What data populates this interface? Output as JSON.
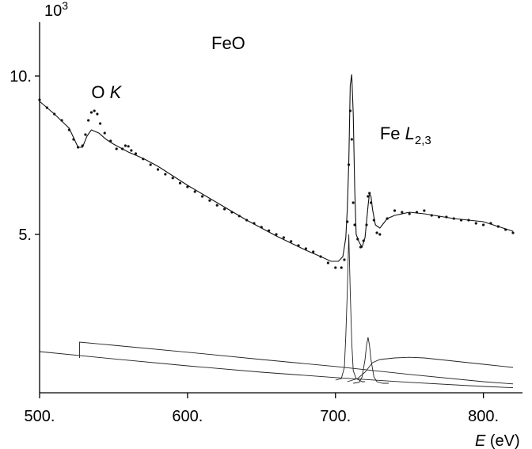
{
  "chart_data": {
    "type": "scatter",
    "title": "FeO",
    "xlabel": "E (eV)",
    "ylabel": "",
    "y_multiplier_label": "10",
    "y_multiplier_exp": "3",
    "xlim": [
      500,
      820
    ],
    "ylim": [
      0,
      11.7
    ],
    "x_ticks": [
      500,
      600,
      700,
      800
    ],
    "x_tick_labels": [
      "500.",
      "600.",
      "700.",
      "800."
    ],
    "y_ticks": [
      5,
      10
    ],
    "y_tick_labels": [
      "5.",
      "10."
    ],
    "grid": false,
    "legend": "none",
    "annotations": [
      {
        "text": "O ",
        "italic_part": "K",
        "x": 535,
        "y": 9.3
      },
      {
        "text": "Fe ",
        "italic_part": "L",
        "subscript": "2,3",
        "x": 730,
        "y": 8.0
      }
    ],
    "series": [
      {
        "kind": "points",
        "x": [
          500,
          505,
          510,
          515,
          520,
          523,
          526,
          529,
          531,
          533,
          535,
          537,
          539,
          541,
          544,
          548,
          552,
          556,
          558,
          560,
          562,
          565,
          570,
          575,
          580,
          585,
          590,
          595,
          600,
          605,
          610,
          615,
          620,
          625,
          630,
          635,
          640,
          645,
          650,
          655,
          660,
          665,
          670,
          675,
          680,
          685,
          690,
          695,
          700,
          704,
          706,
          708,
          709,
          710,
          711,
          712,
          713,
          715,
          717,
          719,
          721,
          722,
          723,
          724,
          726,
          728,
          730,
          735,
          740,
          745,
          750,
          755,
          760,
          765,
          770,
          775,
          780,
          785,
          790,
          795,
          800,
          805,
          810,
          815,
          820
        ],
        "y": [
          9.25,
          9.0,
          8.8,
          8.6,
          8.3,
          8.0,
          7.75,
          7.8,
          8.15,
          8.6,
          8.85,
          8.9,
          8.8,
          8.5,
          8.2,
          7.95,
          7.7,
          7.7,
          7.8,
          7.78,
          7.65,
          7.55,
          7.38,
          7.2,
          7.05,
          6.9,
          6.78,
          6.62,
          6.5,
          6.35,
          6.2,
          6.07,
          5.92,
          5.8,
          5.7,
          5.58,
          5.45,
          5.35,
          5.23,
          5.12,
          5.0,
          4.9,
          4.78,
          4.65,
          4.55,
          4.45,
          4.3,
          4.1,
          3.95,
          3.95,
          4.2,
          5.4,
          7.2,
          8.9,
          8.0,
          6.0,
          5.3,
          4.85,
          4.6,
          4.8,
          5.3,
          6.2,
          6.3,
          6.0,
          5.45,
          5.05,
          5.0,
          5.5,
          5.75,
          5.7,
          5.65,
          5.7,
          5.75,
          5.6,
          5.55,
          5.55,
          5.5,
          5.45,
          5.45,
          5.35,
          5.3,
          5.35,
          5.25,
          5.15,
          5.05
        ]
      },
      {
        "kind": "fit",
        "x": [
          500,
          510,
          520,
          526,
          529,
          532,
          535,
          540,
          545,
          550,
          560,
          570,
          580,
          590,
          600,
          620,
          640,
          660,
          680,
          690,
          697,
          702,
          705,
          707,
          708,
          709,
          710,
          711,
          712,
          713,
          714,
          716,
          718,
          720,
          722,
          723,
          724,
          725,
          727,
          730,
          735,
          740,
          750,
          760,
          780,
          800,
          820
        ],
        "y": [
          9.2,
          8.8,
          8.35,
          7.75,
          7.75,
          8.1,
          8.3,
          8.2,
          8.0,
          7.85,
          7.6,
          7.4,
          7.15,
          6.85,
          6.55,
          6.0,
          5.45,
          4.95,
          4.5,
          4.3,
          4.15,
          4.15,
          4.3,
          4.9,
          5.8,
          7.3,
          9.7,
          10.05,
          8.8,
          6.5,
          5.0,
          4.75,
          4.6,
          4.9,
          5.9,
          6.3,
          6.2,
          5.8,
          5.3,
          5.2,
          5.5,
          5.6,
          5.7,
          5.65,
          5.5,
          5.4,
          5.1
        ]
      },
      {
        "kind": "component",
        "name": "background",
        "x": [
          500,
          550,
          600,
          650,
          700,
          750,
          800,
          820
        ],
        "y": [
          1.3,
          1.07,
          0.85,
          0.65,
          0.48,
          0.33,
          0.2,
          0.16
        ]
      },
      {
        "kind": "component",
        "name": "O K edge",
        "x": [
          527,
          527,
          550,
          600,
          650,
          700,
          750,
          800,
          820
        ],
        "y": [
          1.1,
          1.6,
          1.5,
          1.28,
          1.05,
          0.83,
          0.58,
          0.35,
          0.28
        ]
      },
      {
        "kind": "component",
        "name": "Fe L3 peak",
        "x": [
          700,
          704,
          706,
          707,
          708,
          709,
          710,
          711,
          712,
          714,
          718,
          720
        ],
        "y": [
          0.4,
          0.45,
          0.8,
          1.8,
          3.2,
          5.0,
          3.2,
          1.6,
          0.7,
          0.45,
          0.35,
          0.35
        ]
      },
      {
        "kind": "component",
        "name": "Fe L2 peak",
        "x": [
          712,
          716,
          718,
          720,
          721,
          722,
          723,
          724,
          726,
          728,
          732,
          736
        ],
        "y": [
          0.3,
          0.33,
          0.5,
          1.05,
          1.5,
          1.75,
          1.5,
          1.05,
          0.5,
          0.35,
          0.3,
          0.3
        ]
      },
      {
        "kind": "component",
        "name": "continuum",
        "x": [
          708,
          715,
          720,
          725,
          730,
          740,
          750,
          760,
          780,
          800,
          820
        ],
        "y": [
          0.35,
          0.45,
          0.65,
          0.95,
          1.05,
          1.1,
          1.12,
          1.1,
          1.0,
          0.9,
          0.8
        ]
      }
    ]
  }
}
